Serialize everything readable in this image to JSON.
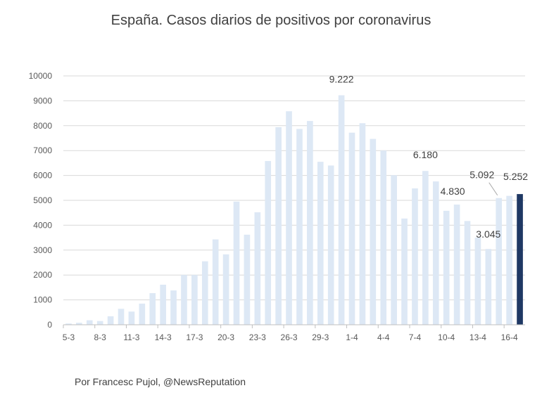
{
  "title": "España. Casos diarios de positivos por coronavirus",
  "credit": "Por Francesc Pujol, @NewsReputation",
  "colors": {
    "bar": "#dde8f5",
    "highlight": "#1f3864",
    "grid": "#d9d9d9",
    "text": "#404040"
  },
  "chart_data": {
    "type": "bar",
    "title": "España. Casos diarios de positivos por coronavirus",
    "xlabel": "",
    "ylabel": "",
    "ylim": [
      0,
      10000
    ],
    "yticks": [
      0,
      1000,
      2000,
      3000,
      4000,
      5000,
      6000,
      7000,
      8000,
      9000,
      10000
    ],
    "grid": true,
    "legend": "none",
    "categories": [
      "5-3",
      "6-3",
      "7-3",
      "8-3",
      "9-3",
      "10-3",
      "11-3",
      "12-3",
      "13-3",
      "14-3",
      "15-3",
      "16-3",
      "17-3",
      "18-3",
      "19-3",
      "20-3",
      "21-3",
      "22-3",
      "23-3",
      "24-3",
      "25-3",
      "26-3",
      "27-3",
      "28-3",
      "29-3",
      "30-3",
      "31-3",
      "1-4",
      "2-4",
      "3-4",
      "4-4",
      "5-4",
      "6-4",
      "7-4",
      "8-4",
      "9-4",
      "10-4",
      "11-4",
      "12-4",
      "13-4",
      "14-4",
      "15-4",
      "16-4",
      "17-4"
    ],
    "tick_labels": [
      "5-3",
      "",
      "",
      "8-3",
      "",
      "",
      "11-3",
      "",
      "",
      "14-3",
      "",
      "",
      "17-3",
      "",
      "",
      "20-3",
      "",
      "",
      "23-3",
      "",
      "",
      "26-3",
      "",
      "",
      "29-3",
      "",
      "",
      "1-4",
      "",
      "",
      "4-4",
      "",
      "",
      "7-4",
      "",
      "",
      "10-4",
      "",
      "",
      "13-4",
      "",
      "",
      "16-4",
      ""
    ],
    "values": [
      50,
      80,
      180,
      150,
      340,
      640,
      530,
      850,
      1270,
      1610,
      1380,
      2000,
      2000,
      2550,
      3430,
      2830,
      4950,
      3620,
      4520,
      6580,
      7940,
      8580,
      7870,
      8190,
      6550,
      6400,
      9222,
      7720,
      8100,
      7470,
      7000,
      6010,
      4270,
      5480,
      6180,
      5760,
      4580,
      4830,
      4170,
      3500,
      3045,
      5092,
      5180,
      5252
    ],
    "highlight_index": 43,
    "data_labels": [
      {
        "index": 26,
        "text": "9.222"
      },
      {
        "index": 34,
        "text": "6.180"
      },
      {
        "index": 37,
        "text": "4.830"
      },
      {
        "index": 40,
        "text": "3.045"
      },
      {
        "index": 41,
        "text": "5.092"
      },
      {
        "index": 43,
        "text": "5.252"
      }
    ]
  }
}
